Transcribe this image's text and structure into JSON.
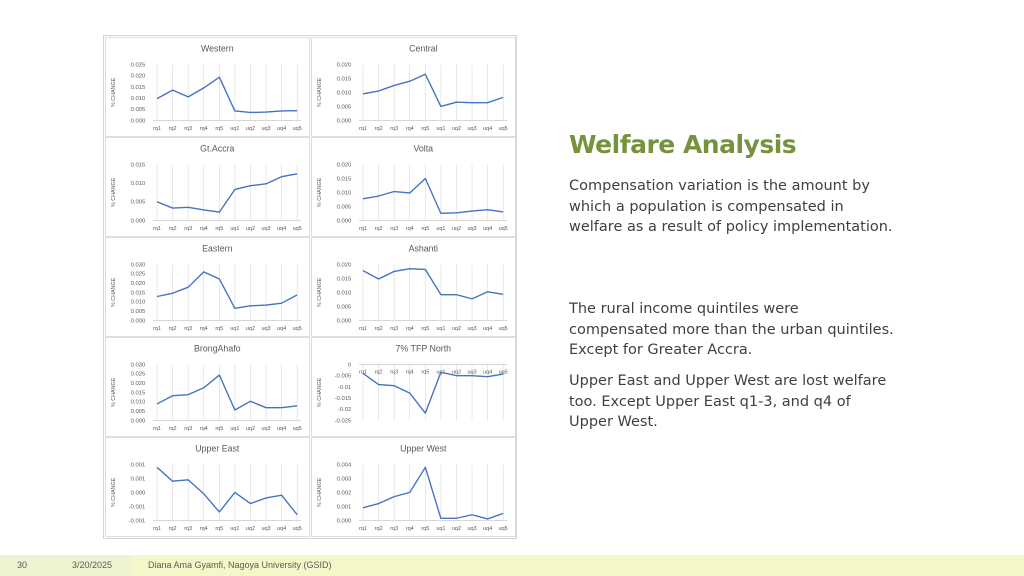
{
  "slide": {
    "title": "Welfare Analysis",
    "paragraphs": [
      "Compensation variation is the amount by which a population is compensated in welfare as a result of policy implementation.",
      "The rural income quintiles were compensated more than the urban quintiles. Except for Greater Accra.",
      "Upper East and Upper West are lost welfare too. Except Upper East q1-3, and q4 of Upper West."
    ]
  },
  "footer": {
    "page_number": "30",
    "date": "3/20/2025",
    "author": "Diana Ama Gyamfi, Nagoya University (GSID)"
  },
  "colors": {
    "line": "#4472c4",
    "grid": "#d9d9d9",
    "title_accent": "#76923c"
  },
  "chart_data": [
    {
      "type": "line",
      "title": "Western",
      "ylabel": "% CHANGE",
      "categories": [
        "rq1",
        "rq2",
        "rq3",
        "rq4",
        "rq5",
        "uq1",
        "uq2",
        "uq3",
        "uq4",
        "uq5"
      ],
      "values": [
        0.0097,
        0.0135,
        0.0105,
        0.0145,
        0.0193,
        0.0042,
        0.0035,
        0.0037,
        0.0042,
        0.0043
      ],
      "ylim": [
        0,
        0.025
      ],
      "yticks": [
        "0.000",
        "0.005",
        "0.010",
        "0.015",
        "0.020",
        "0.025"
      ],
      "grid": "vertical"
    },
    {
      "type": "line",
      "title": "Central",
      "ylabel": "% CHANGE",
      "categories": [
        "rq1",
        "rq2",
        "rq3",
        "rq4",
        "rq5",
        "uq1",
        "uq2",
        "uq3",
        "uq4",
        "uq5"
      ],
      "values": [
        0.0095,
        0.0105,
        0.0125,
        0.014,
        0.0165,
        0.005,
        0.0065,
        0.0063,
        0.0063,
        0.0082
      ],
      "ylim": [
        0,
        0.02
      ],
      "yticks": [
        "0.000",
        "0.005",
        "0.010",
        "0.015",
        "0.020"
      ],
      "grid": "vertical"
    },
    {
      "type": "line",
      "title": "Gt.Accra",
      "ylabel": "% CHANGE",
      "categories": [
        "rq1",
        "rq2",
        "rq3",
        "rq4",
        "rq5",
        "uq1",
        "uq2",
        "uq3",
        "uq4",
        "uq5"
      ],
      "values": [
        0.005,
        0.0033,
        0.0035,
        0.0028,
        0.0022,
        0.0083,
        0.0093,
        0.0098,
        0.0117,
        0.0125
      ],
      "ylim": [
        0,
        0.015
      ],
      "yticks": [
        "0.000",
        "0.005",
        "0.010",
        "0.015"
      ],
      "grid": "vertical"
    },
    {
      "type": "line",
      "title": "Volta",
      "ylabel": "% CHANGE",
      "categories": [
        "rq1",
        "rq2",
        "rq3",
        "rq4",
        "rq5",
        "uq1",
        "uq2",
        "uq3",
        "uq4",
        "uq5"
      ],
      "values": [
        0.0077,
        0.0087,
        0.0103,
        0.0098,
        0.015,
        0.0025,
        0.0027,
        0.0033,
        0.0038,
        0.003
      ],
      "ylim": [
        0,
        0.02
      ],
      "yticks": [
        "0.000",
        "0.005",
        "0.010",
        "0.015",
        "0.020"
      ],
      "grid": "vertical"
    },
    {
      "type": "line",
      "title": "Eastern",
      "ylabel": "% CHANGE",
      "categories": [
        "rq1",
        "rq2",
        "rq3",
        "rq4",
        "rq5",
        "uq1",
        "uq2",
        "uq3",
        "uq4",
        "uq5"
      ],
      "values": [
        0.0128,
        0.0145,
        0.0178,
        0.026,
        0.0222,
        0.0065,
        0.0078,
        0.0082,
        0.0092,
        0.0137
      ],
      "ylim": [
        0,
        0.03
      ],
      "yticks": [
        "0.000",
        "0.005",
        "0.010",
        "0.015",
        "0.020",
        "0.025",
        "0.030"
      ],
      "grid": "vertical"
    },
    {
      "type": "line",
      "title": "Ashanti",
      "ylabel": "% CHANGE",
      "categories": [
        "rq1",
        "rq2",
        "rq3",
        "rq4",
        "rq5",
        "uq1",
        "uq2",
        "uq3",
        "uq4",
        "uq5"
      ],
      "values": [
        0.0178,
        0.0148,
        0.0175,
        0.0185,
        0.0182,
        0.0092,
        0.0092,
        0.0077,
        0.0102,
        0.0093
      ],
      "ylim": [
        0,
        0.02
      ],
      "yticks": [
        "0.000",
        "0.005",
        "0.010",
        "0.015",
        "0.020"
      ],
      "grid": "vertical"
    },
    {
      "type": "line",
      "title": "BrongAhafo",
      "ylabel": "% CHANGE",
      "categories": [
        "rq1",
        "rq2",
        "rq3",
        "rq4",
        "rq5",
        "uq1",
        "uq2",
        "uq3",
        "uq4",
        "uq5"
      ],
      "values": [
        0.0088,
        0.0132,
        0.0138,
        0.0175,
        0.0243,
        0.0055,
        0.0102,
        0.0068,
        0.0068,
        0.0078
      ],
      "ylim": [
        0,
        0.03
      ],
      "yticks": [
        "0.000",
        "0.005",
        "0.010",
        "0.015",
        "0.020",
        "0.025",
        "0.030"
      ],
      "grid": "vertical"
    },
    {
      "type": "line",
      "title": "7% TFP North",
      "ylabel": "% CHANGE",
      "categories": [
        "rq1",
        "rq2",
        "rq3",
        "rq4",
        "rq5",
        "uq1",
        "uq2",
        "uq3",
        "uq4",
        "uq5"
      ],
      "values": [
        -0.004,
        -0.009,
        -0.0095,
        -0.0128,
        -0.0218,
        -0.0035,
        -0.005,
        -0.005,
        -0.0055,
        -0.0043
      ],
      "ylim": [
        -0.025,
        0
      ],
      "yticks": [
        "-0.025",
        "-0.02",
        "-0.015",
        "-0.01",
        "-0.005",
        "0"
      ],
      "xaxis_position": "top",
      "grid": "vertical"
    },
    {
      "type": "line",
      "title": "Upper East",
      "ylabel": "% CHANGE",
      "categories": [
        "rq1",
        "rq2",
        "rq3",
        "rq4",
        "rq5",
        "uq1",
        "uq2",
        "uq3",
        "uq4",
        "uq5"
      ],
      "values": [
        0.0009,
        0.0004,
        0.00045,
        -5e-05,
        -0.0007,
        0.0,
        -0.0004,
        -0.0002,
        -0.0001,
        -0.0008
      ],
      "ylim": [
        -0.001,
        0.001
      ],
      "yticks": [
        "-0.001",
        "-0.001",
        "0.000",
        "0.001",
        "0.001"
      ],
      "grid": "vertical"
    },
    {
      "type": "line",
      "title": "Upper West",
      "ylabel": "% CHANGE",
      "categories": [
        "rq1",
        "rq2",
        "rq3",
        "rq4",
        "rq5",
        "uq1",
        "uq2",
        "uq3",
        "uq4",
        "uq5"
      ],
      "values": [
        0.0009,
        0.0012,
        0.0017,
        0.002,
        0.0038,
        0.00015,
        0.00015,
        0.0004,
        0.0001,
        0.0005
      ],
      "ylim": [
        0,
        0.004
      ],
      "yticks": [
        "0.000",
        "0.001",
        "0.002",
        "0.003",
        "0.004"
      ],
      "grid": "vertical"
    }
  ]
}
